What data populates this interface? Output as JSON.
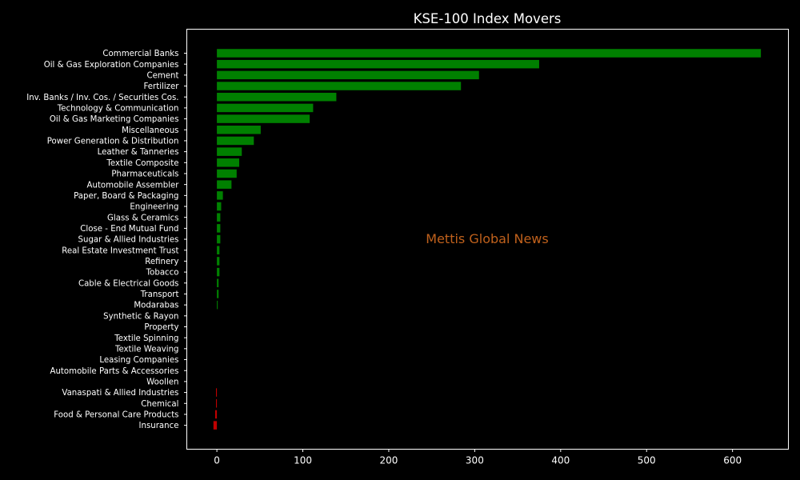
{
  "chart_data": {
    "type": "bar",
    "orientation": "horizontal",
    "title": "KSE-100 Index Movers",
    "xlabel": "",
    "ylabel": "",
    "xlim": [
      -35,
      665
    ],
    "xticks": [
      0,
      100,
      200,
      300,
      400,
      500,
      600
    ],
    "grid": false,
    "watermark": "Mettis Global News",
    "colors": {
      "positive": "#008000",
      "negative": "#c00000",
      "background": "#000000",
      "axis": "#ffffff"
    },
    "categories": [
      "Commercial Banks",
      "Oil & Gas Exploration Companies",
      "Cement",
      "Fertilizer",
      "Inv. Banks / Inv. Cos. / Securities Cos.",
      "Technology & Communication",
      "Oil & Gas Marketing Companies",
      "Miscellaneous",
      "Power Generation & Distribution",
      "Leather & Tanneries",
      "Textile Composite",
      "Pharmaceuticals",
      "Automobile Assembler",
      "Paper, Board & Packaging",
      "Engineering",
      "Glass & Ceramics",
      "Close - End Mutual Fund",
      "Sugar & Allied Industries",
      "Real Estate Investment Trust",
      "Refinery",
      "Tobacco",
      "Cable & Electrical Goods",
      "Transport",
      "Modarabas",
      "Synthetic & Rayon",
      "Property",
      "Textile Spinning",
      "Textile Weaving",
      "Leasing Companies",
      "Automobile Parts & Accessories",
      "Woollen",
      "Vanaspati & Allied Industries",
      "Chemical",
      "Food & Personal Care Products",
      "Insurance"
    ],
    "values": [
      633,
      375,
      305,
      284,
      139,
      112,
      108,
      51,
      43,
      29,
      26,
      23,
      17,
      7,
      5,
      4,
      4,
      4,
      3,
      3,
      3,
      2,
      2,
      1,
      0,
      0,
      0,
      0,
      0,
      0,
      0,
      -1,
      -1,
      -2,
      -4
    ]
  }
}
